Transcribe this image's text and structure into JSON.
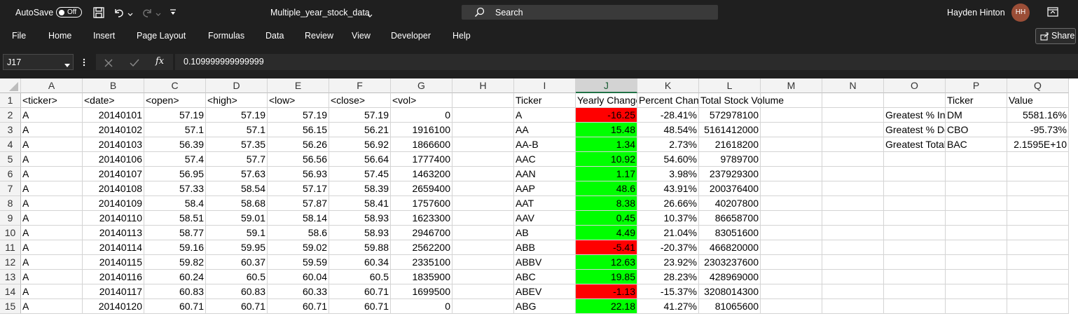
{
  "titlebar": {
    "autosave_label": "AutoSave",
    "autosave_state": "Off",
    "filename": "Multiple_year_stock_data",
    "search_placeholder": "Search",
    "user_name": "Hayden Hinton",
    "user_initials": "HH"
  },
  "menu": {
    "items": [
      "File",
      "Home",
      "Insert",
      "Page Layout",
      "Formulas",
      "Data",
      "Review",
      "View",
      "Developer",
      "Help"
    ],
    "share_label": "Share"
  },
  "formula_bar": {
    "name_box": "J17",
    "fx_label": "fx",
    "value": "0.109999999999999"
  },
  "sheet": {
    "columns": [
      "A",
      "B",
      "C",
      "D",
      "E",
      "F",
      "G",
      "H",
      "I",
      "J",
      "K",
      "L",
      "M",
      "N",
      "O",
      "P",
      "Q"
    ],
    "selected_column": "J",
    "rows": [
      [
        "<ticker>",
        "<date>",
        "<open>",
        "<high>",
        "<low>",
        "<close>",
        "<vol>",
        "",
        "Ticker",
        "Yearly Change",
        "Percent Change",
        "Total Stock Volume",
        "",
        "",
        "",
        "Ticker",
        "Value"
      ],
      [
        "A",
        "20140101",
        "57.19",
        "57.19",
        "57.19",
        "57.19",
        "0",
        "",
        "A",
        "-16.25",
        "-28.41%",
        "572978100",
        "",
        "",
        "Greatest % Increase",
        "DM",
        "5581.16%"
      ],
      [
        "A",
        "20140102",
        "57.1",
        "57.1",
        "56.15",
        "56.21",
        "1916100",
        "",
        "AA",
        "15.48",
        "48.54%",
        "5161412000",
        "",
        "",
        "Greatest % Decrease",
        "CBO",
        "-95.73%"
      ],
      [
        "A",
        "20140103",
        "56.39",
        "57.35",
        "56.26",
        "56.92",
        "1866600",
        "",
        "AA-B",
        "1.34",
        "2.73%",
        "21618200",
        "",
        "",
        "Greatest Total Volume",
        "BAC",
        "2.1595E+10"
      ],
      [
        "A",
        "20140106",
        "57.4",
        "57.7",
        "56.56",
        "56.64",
        "1777400",
        "",
        "AAC",
        "10.92",
        "54.60%",
        "9789700",
        "",
        "",
        "",
        "",
        ""
      ],
      [
        "A",
        "20140107",
        "56.95",
        "57.63",
        "56.93",
        "57.45",
        "1463200",
        "",
        "AAN",
        "1.17",
        "3.98%",
        "237929300",
        "",
        "",
        "",
        "",
        ""
      ],
      [
        "A",
        "20140108",
        "57.33",
        "58.54",
        "57.17",
        "58.39",
        "2659400",
        "",
        "AAP",
        "48.6",
        "43.91%",
        "200376400",
        "",
        "",
        "",
        "",
        ""
      ],
      [
        "A",
        "20140109",
        "58.4",
        "58.68",
        "57.87",
        "58.41",
        "1757600",
        "",
        "AAT",
        "8.38",
        "26.66%",
        "40207800",
        "",
        "",
        "",
        "",
        ""
      ],
      [
        "A",
        "20140110",
        "58.51",
        "59.01",
        "58.14",
        "58.93",
        "1623300",
        "",
        "AAV",
        "0.45",
        "10.37%",
        "86658700",
        "",
        "",
        "",
        "",
        ""
      ],
      [
        "A",
        "20140113",
        "58.77",
        "59.1",
        "58.6",
        "58.93",
        "2946700",
        "",
        "AB",
        "4.49",
        "21.04%",
        "83051600",
        "",
        "",
        "",
        "",
        ""
      ],
      [
        "A",
        "20140114",
        "59.16",
        "59.95",
        "59.02",
        "59.88",
        "2562200",
        "",
        "ABB",
        "-5.41",
        "-20.37%",
        "466820000",
        "",
        "",
        "",
        "",
        ""
      ],
      [
        "A",
        "20140115",
        "59.82",
        "60.37",
        "59.59",
        "60.34",
        "2335100",
        "",
        "ABBV",
        "12.63",
        "23.92%",
        "2303237600",
        "",
        "",
        "",
        "",
        ""
      ],
      [
        "A",
        "20140116",
        "60.24",
        "60.5",
        "60.04",
        "60.5",
        "1835900",
        "",
        "ABC",
        "19.85",
        "28.23%",
        "428969000",
        "",
        "",
        "",
        "",
        ""
      ],
      [
        "A",
        "20140117",
        "60.83",
        "60.83",
        "60.33",
        "60.71",
        "1699500",
        "",
        "ABEV",
        "-1.13",
        "-15.37%",
        "3208014300",
        "",
        "",
        "",
        "",
        ""
      ],
      [
        "A",
        "20140120",
        "60.71",
        "60.71",
        "60.71",
        "60.71",
        "0",
        "",
        "ABG",
        "22.18",
        "41.27%",
        "81065600",
        "",
        "",
        "",
        "",
        ""
      ]
    ]
  },
  "colors": {
    "chrome_bg": "#1f1f1f",
    "positive_fill": "#00ff00",
    "negative_fill": "#ff0000",
    "selection_accent": "#217346"
  },
  "icons": {
    "save": "save-icon",
    "undo": "undo-icon",
    "redo": "redo-icon",
    "customize": "customize-qat-icon",
    "search": "search-icon",
    "ribbon_display": "ribbon-display-icon",
    "share": "share-icon",
    "cancel": "close-icon",
    "enter": "check-icon"
  }
}
